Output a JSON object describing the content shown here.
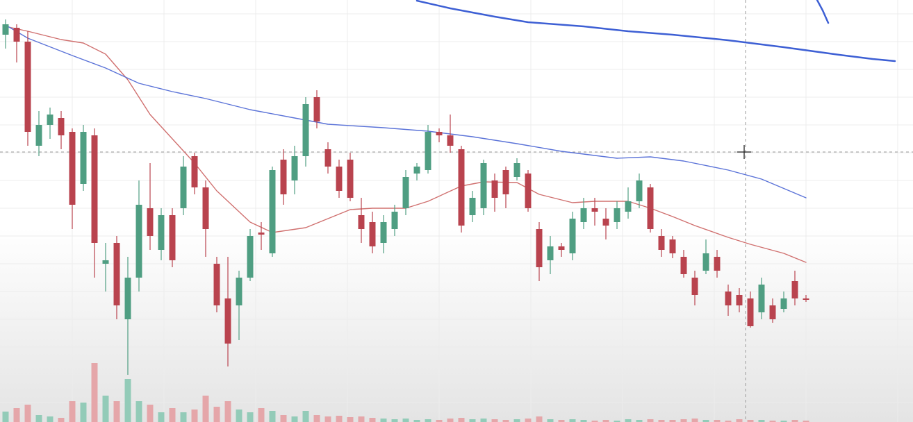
{
  "chart_data": {
    "type": "candlestick",
    "xlim": [
      -0.5,
      81.625
    ],
    "ylim": [
      0,
      608
    ],
    "vlim": [
      0,
      100
    ],
    "grid": true,
    "xticks": [
      6,
      14.25,
      22.5,
      30.75,
      39,
      47.25,
      55.5,
      63.75,
      72,
      80.25
    ],
    "yticks": [
      28,
      68,
      108,
      148,
      188,
      228,
      268,
      308,
      348,
      388,
      428,
      468,
      508,
      548,
      588
    ],
    "up_color": "#4f9e82",
    "down_color": "#b9434e",
    "volume_up_color": "#93cbb8",
    "volume_down_color": "#e5a6a9",
    "x": [
      0,
      1,
      2,
      3,
      4,
      5,
      6,
      7,
      8,
      9,
      10,
      11,
      12,
      13,
      14,
      15,
      16,
      17,
      18,
      19,
      20,
      21,
      22,
      23,
      24,
      25,
      26,
      27,
      28,
      29,
      30,
      31,
      32,
      33,
      34,
      35,
      36,
      37,
      38,
      39,
      40,
      41,
      42,
      43,
      44,
      45,
      46,
      47,
      48,
      49,
      50,
      51,
      52,
      53,
      54,
      55,
      56,
      57,
      58,
      59,
      60,
      61,
      62,
      63,
      64,
      65,
      66,
      67,
      68,
      69,
      70,
      71,
      72
    ],
    "open": [
      558,
      568,
      548,
      398,
      428,
      438,
      418,
      343,
      413,
      228,
      258,
      148,
      208,
      308,
      248,
      298,
      308,
      383,
      338,
      228,
      178,
      168,
      208,
      273,
      243,
      378,
      348,
      383,
      468,
      393,
      368,
      378,
      298,
      288,
      258,
      278,
      308,
      358,
      363,
      418,
      413,
      393,
      298,
      308,
      348,
      363,
      353,
      358,
      278,
      233,
      253,
      243,
      288,
      308,
      293,
      288,
      303,
      318,
      338,
      268,
      263,
      238,
      208,
      218,
      238,
      188,
      183,
      178,
      158,
      168,
      163,
      203,
      178
    ],
    "high": [
      580,
      573,
      563,
      448,
      453,
      448,
      423,
      428,
      423,
      258,
      268,
      238,
      348,
      373,
      308,
      308,
      383,
      388,
      348,
      238,
      238,
      218,
      278,
      288,
      368,
      393,
      398,
      468,
      478,
      403,
      378,
      388,
      323,
      303,
      298,
      313,
      363,
      373,
      428,
      423,
      443,
      398,
      333,
      378,
      358,
      368,
      380,
      363,
      288,
      268,
      258,
      303,
      323,
      323,
      308,
      318,
      338,
      358,
      343,
      278,
      268,
      248,
      218,
      263,
      248,
      198,
      193,
      188,
      208,
      178,
      188,
      218,
      183
    ],
    "low": [
      538,
      518,
      398,
      383,
      408,
      393,
      278,
      333,
      208,
      188,
      148,
      68,
      188,
      248,
      233,
      223,
      298,
      328,
      238,
      158,
      80,
      118,
      203,
      248,
      238,
      313,
      328,
      368,
      423,
      358,
      323,
      318,
      258,
      243,
      243,
      268,
      298,
      348,
      358,
      403,
      388,
      273,
      288,
      298,
      303,
      308,
      348,
      303,
      203,
      213,
      238,
      233,
      278,
      283,
      263,
      278,
      293,
      308,
      273,
      238,
      236,
      208,
      168,
      213,
      208,
      153,
      158,
      136,
      148,
      143,
      158,
      168,
      173
    ],
    "close": [
      573,
      548,
      418,
      428,
      443,
      413,
      313,
      418,
      258,
      233,
      168,
      208,
      313,
      268,
      298,
      233,
      368,
      338,
      278,
      168,
      113,
      208,
      268,
      270,
      363,
      328,
      383,
      458,
      433,
      368,
      333,
      323,
      278,
      253,
      288,
      303,
      353,
      368,
      418,
      413,
      398,
      283,
      323,
      373,
      323,
      328,
      373,
      308,
      223,
      253,
      248,
      293,
      308,
      303,
      283,
      308,
      318,
      348,
      278,
      248,
      243,
      213,
      183,
      243,
      218,
      168,
      168,
      138,
      198,
      148,
      178,
      178,
      176
    ],
    "volume": [
      15,
      20,
      25,
      10,
      8,
      6,
      30,
      28,
      85,
      38,
      30,
      62,
      30,
      25,
      14,
      20,
      14,
      18,
      38,
      22,
      30,
      18,
      14,
      20,
      16,
      10,
      8,
      16,
      10,
      8,
      9,
      7,
      8,
      6,
      5,
      4,
      5,
      3,
      4,
      3,
      5,
      6,
      4,
      5,
      4,
      3,
      4,
      5,
      8,
      4,
      3,
      4,
      3,
      2,
      3,
      2,
      4,
      3,
      4,
      3,
      3,
      4,
      5,
      3,
      3,
      2,
      4,
      3,
      3,
      2,
      2,
      3,
      2
    ],
    "series": [
      {
        "color": "#d0706f",
        "x": [
          0,
          2,
          5,
          7,
          9,
          11,
          13,
          15,
          17,
          19,
          22,
          24,
          27,
          29,
          31,
          33,
          36,
          38,
          41,
          43,
          46,
          48,
          51,
          53,
          56,
          58,
          60,
          62,
          65,
          67,
          70,
          72
        ],
        "values": [
          570,
          563,
          551,
          546,
          530,
          493,
          443,
          408,
          373,
          333,
          288,
          273,
          280,
          293,
          306,
          308,
          308,
          318,
          340,
          346,
          345,
          328,
          316,
          318,
          318,
          308,
          296,
          283,
          266,
          256,
          243,
          230
        ]
      },
      {
        "color": "#5b73d8",
        "x": [
          0,
          2,
          6,
          9,
          12,
          15,
          18,
          22,
          26,
          29,
          34,
          38,
          42,
          46,
          50,
          55,
          58,
          61,
          65,
          68,
          72
        ],
        "values": [
          572,
          553,
          528,
          510,
          488,
          476,
          466,
          450,
          438,
          429,
          424,
          419,
          411,
          401,
          390,
          380,
          382,
          376,
          363,
          350,
          323
        ]
      },
      {
        "color": "#3d5fd4",
        "linewidth": 2.5,
        "x": [
          37,
          40,
          44,
          47,
          52,
          56,
          60,
          65,
          70,
          75,
          78,
          80
        ],
        "values": [
          607,
          596,
          584,
          576,
          570,
          563,
          558,
          550,
          540,
          529,
          523,
          520
        ]
      },
      {
        "color": "#3d5fd4",
        "linewidth": 2.5,
        "x": [
          73,
          73.5,
          74
        ],
        "values": [
          608,
          593,
          575
        ]
      }
    ]
  }
}
